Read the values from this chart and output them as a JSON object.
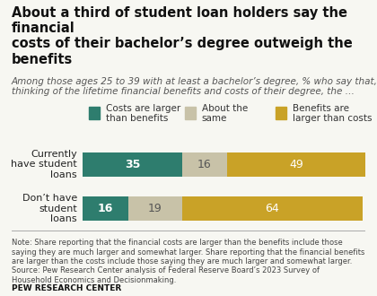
{
  "title": "About a third of student loan holders say the financial\ncosts of their bachelor’s degree outweigh the benefits",
  "subtitle": "Among those ages 25 to 39 with at least a bachelor’s degree, % who say that,\nthinking of the lifetime financial benefits and costs of their degree, the …",
  "categories": [
    "Currently\nhave student\nloans",
    "Don’t have\nstudent\nloans"
  ],
  "series": [
    {
      "label": "Costs are larger\nthan benefits",
      "color": "#2e7d6e",
      "values": [
        35,
        16
      ]
    },
    {
      "label": "About the\nsame",
      "color": "#c8c2a8",
      "values": [
        16,
        19
      ]
    },
    {
      "label": "Benefits are\nlarger than costs",
      "color": "#c9a227",
      "values": [
        49,
        64
      ]
    }
  ],
  "note": "Note: Share reporting that the financial costs are larger than the benefits include those\nsaying they are much larger and somewhat larger. Share reporting that the financial benefits\nare larger than the costs include those saying they are much larger and somewhat larger.\nSource: Pew Research Center analysis of Federal Reserve Board’s 2023 Survey of\nHousehold Economics and Decisionmaking.",
  "source_label": "PEW RESEARCH CENTER",
  "background_color": "#f7f7f2",
  "title_fontsize": 10.5,
  "subtitle_fontsize": 7.5,
  "bar_label_fontsize": 9,
  "note_fontsize": 6.0,
  "source_fontsize": 6.5,
  "legend_fontsize": 7.5,
  "category_fontsize": 8.0
}
